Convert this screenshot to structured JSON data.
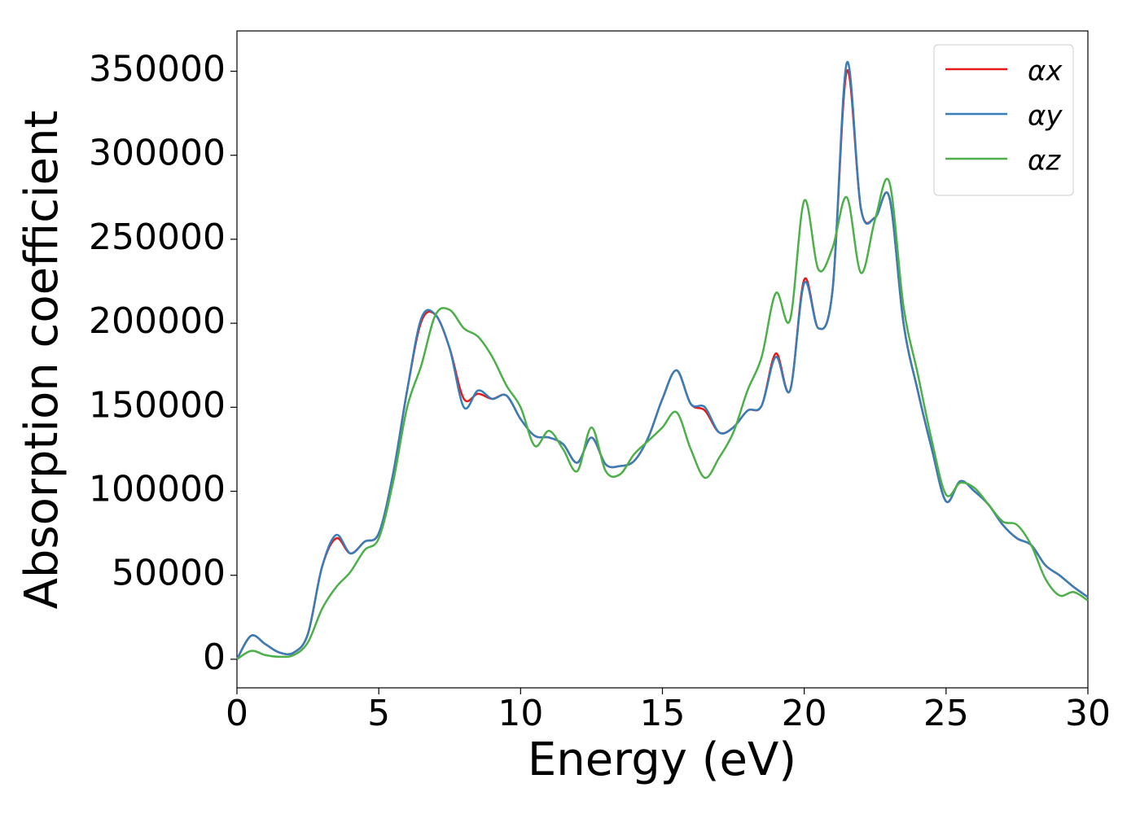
{
  "chart_data": {
    "type": "line",
    "x_label": "Energy (eV)",
    "y_label": "Absorption coefficient",
    "x": [
      0,
      0.5,
      1,
      1.5,
      2,
      2.5,
      3,
      3.5,
      4,
      4.5,
      5,
      5.5,
      6,
      6.5,
      7,
      7.5,
      8,
      8.5,
      9,
      9.5,
      10,
      10.5,
      11,
      11.5,
      12,
      12.5,
      13,
      13.5,
      14,
      14.5,
      15,
      15.5,
      16,
      16.5,
      17,
      17.5,
      18,
      18.5,
      19,
      19.5,
      20,
      20.5,
      21,
      21.5,
      22,
      22.5,
      23,
      23.5,
      24,
      24.5,
      25,
      25.5,
      26,
      26.5,
      27,
      27.5,
      28,
      28.5,
      29,
      29.5,
      30
    ],
    "series": [
      {
        "name": "αx",
        "color": "#e41a1c",
        "values": [
          0,
          14000,
          9000,
          4000,
          4000,
          15000,
          55000,
          72000,
          63000,
          70000,
          75000,
          110000,
          160000,
          201000,
          205000,
          185000,
          155000,
          158000,
          155000,
          157000,
          143000,
          133000,
          132000,
          128000,
          117000,
          132000,
          116000,
          115000,
          118000,
          132000,
          155000,
          172000,
          152000,
          148000,
          135000,
          138000,
          148000,
          151000,
          182000,
          160000,
          226000,
          197000,
          220000,
          350000,
          268000,
          263000,
          275000,
          200000,
          160000,
          125000,
          94000,
          106000,
          100000,
          92000,
          80000,
          72000,
          68000,
          56000,
          50000,
          43000,
          37000
        ]
      },
      {
        "name": "αy",
        "color": "#377eb8",
        "values": [
          0,
          14000,
          9000,
          4000,
          4000,
          15000,
          55000,
          74000,
          63000,
          70000,
          75000,
          110000,
          160000,
          203000,
          205000,
          185000,
          150000,
          160000,
          155000,
          157000,
          143000,
          133000,
          132000,
          128000,
          117000,
          132000,
          116000,
          115000,
          118000,
          132000,
          155000,
          172000,
          152000,
          150000,
          135000,
          138000,
          148000,
          151000,
          180000,
          160000,
          224000,
          197000,
          220000,
          355000,
          268000,
          263000,
          275000,
          200000,
          160000,
          125000,
          94000,
          106000,
          100000,
          92000,
          80000,
          72000,
          68000,
          56000,
          50000,
          43000,
          37000
        ]
      },
      {
        "name": "αz",
        "color": "#4daf4a",
        "values": [
          0,
          5000,
          2500,
          1500,
          2500,
          10000,
          30000,
          43000,
          52000,
          65000,
          72000,
          105000,
          150000,
          175000,
          205000,
          208000,
          197000,
          192000,
          180000,
          163000,
          150000,
          127000,
          136000,
          125000,
          112000,
          138000,
          112000,
          110000,
          122000,
          130000,
          138000,
          147000,
          125000,
          108000,
          120000,
          135000,
          160000,
          180000,
          218000,
          202000,
          273000,
          232000,
          245000,
          275000,
          230000,
          262000,
          284000,
          210000,
          170000,
          130000,
          98000,
          105000,
          102000,
          92000,
          82000,
          80000,
          68000,
          48000,
          38000,
          40000,
          35000
        ]
      }
    ],
    "xlim": [
      0,
      30
    ],
    "xticks": [
      0,
      5,
      10,
      15,
      20,
      25,
      30
    ],
    "ylim": [
      -17000,
      374000
    ],
    "yticks": [
      0,
      50000,
      100000,
      150000,
      200000,
      250000,
      300000,
      350000
    ],
    "legend": "upper right",
    "grid": false
  }
}
